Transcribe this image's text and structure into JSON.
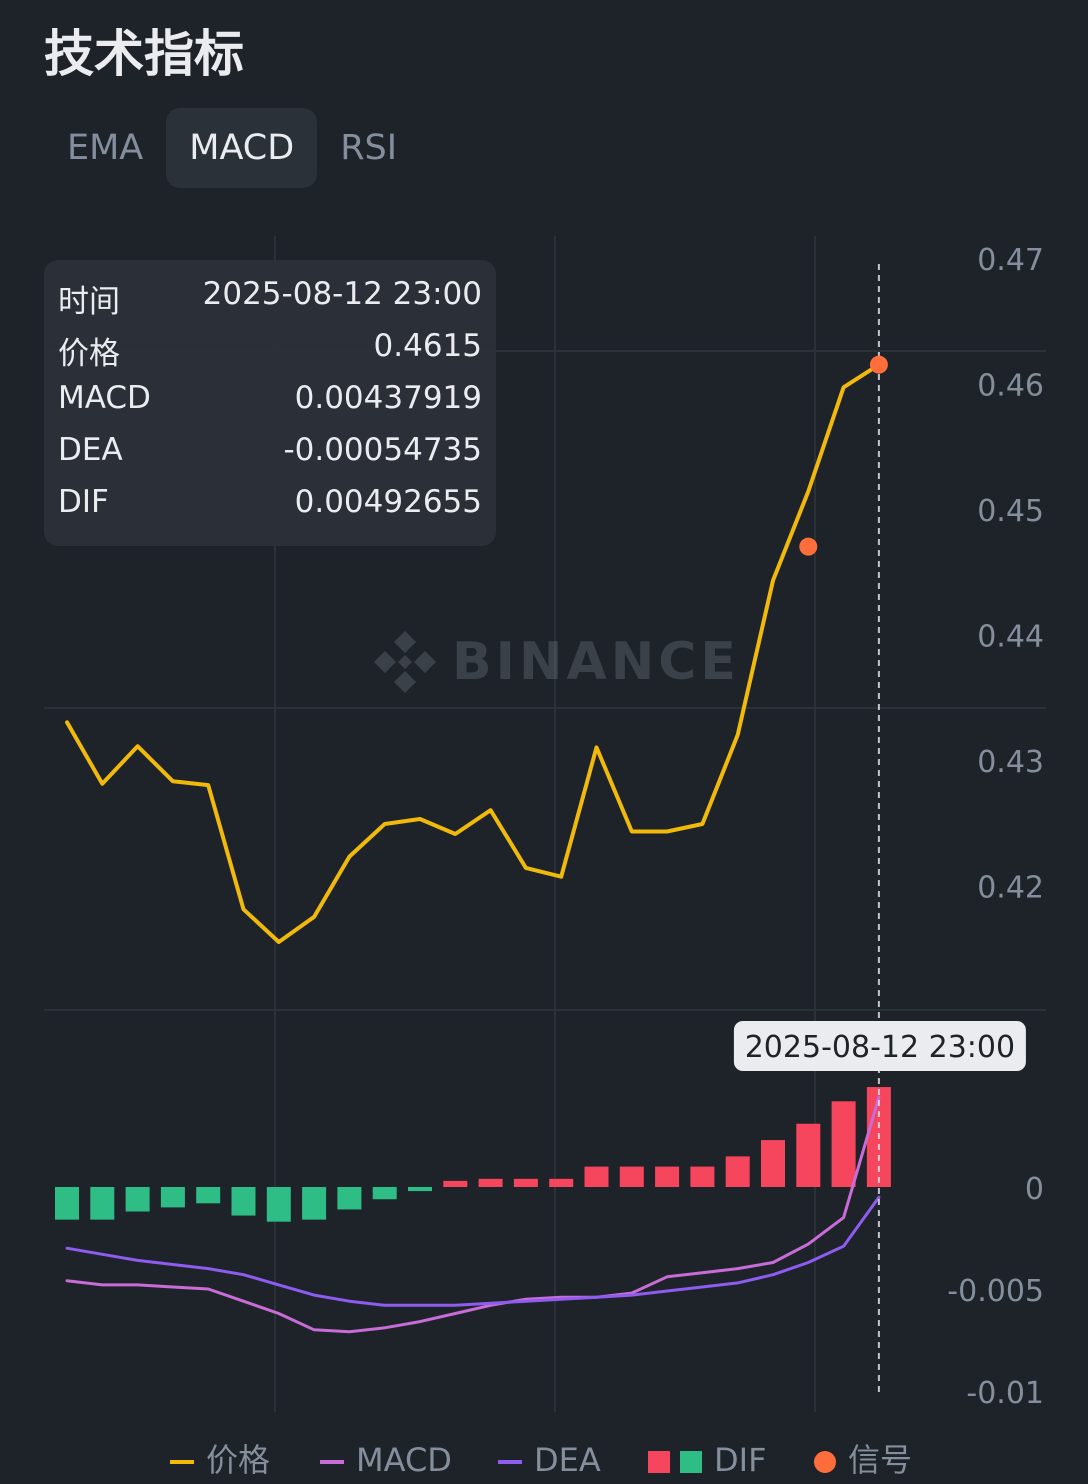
{
  "header": {
    "title": "技术指标"
  },
  "tabs": [
    {
      "label": "EMA",
      "active": false
    },
    {
      "label": "MACD",
      "active": true
    },
    {
      "label": "RSI",
      "active": false
    }
  ],
  "watermark": "BINANCE",
  "tooltip": {
    "rows": [
      {
        "key": "时间",
        "value": "2025-08-12 23:00"
      },
      {
        "key": "价格",
        "value": "0.4615"
      },
      {
        "key": "MACD",
        "value": "0.00437919"
      },
      {
        "key": "DEA",
        "value": "-0.00054735"
      },
      {
        "key": "DIF",
        "value": "0.00492655"
      }
    ]
  },
  "crosshair_label": "2025-08-12 23:00",
  "legend": {
    "price": "价格",
    "macd": "MACD",
    "dea": "DEA",
    "dif": "DIF",
    "signal": "信号"
  },
  "colors": {
    "background": "#1e2329",
    "price": "#f0b90b",
    "macd": "#c86dd7",
    "dea": "#8e5cf0",
    "dif_positive": "#f6465d",
    "dif_negative": "#2ebd85",
    "signal": "#ff6e3a"
  },
  "chart_data": [
    {
      "type": "line",
      "name": "price-panel",
      "y_ticks": [
        "0.47",
        "0.46",
        "0.45",
        "0.44",
        "0.43",
        "0.42"
      ],
      "ylim": [
        0.4155,
        0.4725
      ],
      "series": [
        {
          "name": "价格",
          "values": [
            0.433,
            0.4281,
            0.4311,
            0.4283,
            0.428,
            0.4181,
            0.4155,
            0.4175,
            0.4223,
            0.4249,
            0.4253,
            0.4241,
            0.426,
            0.4214,
            0.4207,
            0.431,
            0.4243,
            0.4243,
            0.4249,
            0.432,
            0.4443,
            0.4514,
            0.4597,
            0.4615
          ]
        }
      ],
      "signals": [
        {
          "index": 21,
          "value": 0.447
        },
        {
          "index": 23,
          "value": 0.4615
        }
      ],
      "grid": true
    },
    {
      "type": "bar",
      "name": "macd-panel",
      "y_ticks": [
        "0",
        "-0.005",
        "-0.01"
      ],
      "ylim": [
        -0.0102,
        0.0049
      ],
      "series": [
        {
          "name": "DIF",
          "values": [
            -0.0016,
            -0.0016,
            -0.0012,
            -0.001,
            -0.0008,
            -0.0014,
            -0.0017,
            -0.0016,
            -0.0011,
            -0.0006,
            -0.0002,
            0.0003,
            0.0004,
            0.0004,
            0.0004,
            0.001,
            0.001,
            0.001,
            0.001,
            0.0015,
            0.0023,
            0.0031,
            0.0042,
            0.0049
          ]
        },
        {
          "name": "MACD",
          "values": [
            -0.0046,
            -0.0048,
            -0.0048,
            -0.0049,
            -0.005,
            -0.0056,
            -0.0062,
            -0.007,
            -0.0071,
            -0.0069,
            -0.0066,
            -0.0062,
            -0.0058,
            -0.0055,
            -0.0054,
            -0.0054,
            -0.0052,
            -0.0044,
            -0.0042,
            -0.004,
            -0.0037,
            -0.0028,
            -0.0015,
            0.0044
          ]
        },
        {
          "name": "DEA",
          "values": [
            -0.003,
            -0.0033,
            -0.0036,
            -0.0038,
            -0.004,
            -0.0043,
            -0.0048,
            -0.0053,
            -0.0056,
            -0.0058,
            -0.0058,
            -0.0058,
            -0.0057,
            -0.0056,
            -0.0055,
            -0.0054,
            -0.0053,
            -0.0051,
            -0.0049,
            -0.0047,
            -0.0043,
            -0.0037,
            -0.0029,
            -0.0005
          ]
        }
      ],
      "grid": true
    }
  ]
}
